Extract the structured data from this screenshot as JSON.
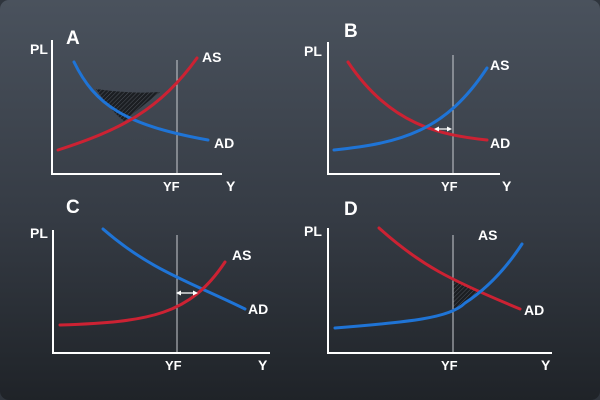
{
  "panels": [
    {
      "letter": "A",
      "pl_label": "PL",
      "y_label": "Y",
      "yf_label": "YF",
      "as_label": "AS",
      "ad_label": "AD"
    },
    {
      "letter": "B",
      "pl_label": "PL",
      "y_label": "Y",
      "yf_label": "YF",
      "as_label": "AS",
      "ad_label": "AD"
    },
    {
      "letter": "C",
      "pl_label": "PL",
      "y_label": "Y",
      "yf_label": "YF",
      "as_label": "AS",
      "ad_label": "AD"
    },
    {
      "letter": "D",
      "pl_label": "PL",
      "y_label": "Y",
      "yf_label": "YF",
      "as_label": "AS",
      "ad_label": "AD"
    }
  ],
  "colors": {
    "red": "#cc2233",
    "blue": "#1f74d6",
    "axis": "#ffffff",
    "guide": "#c9ccd1"
  }
}
